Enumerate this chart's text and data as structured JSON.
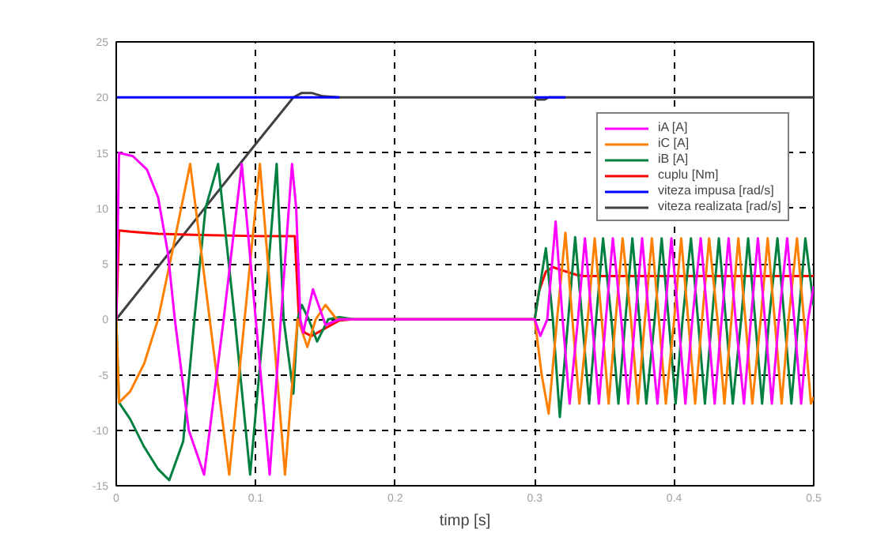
{
  "chart_data": {
    "type": "line",
    "xlabel": "timp [s]",
    "xlim": [
      0,
      0.5
    ],
    "xticks": [
      0,
      0.1,
      0.2,
      0.3,
      0.4,
      0.5
    ],
    "ylim": [
      -15,
      25
    ],
    "yticks": [
      -15,
      -10,
      -5,
      0,
      5,
      10,
      15,
      20,
      25
    ],
    "grid": true,
    "legend": "top right",
    "line_style": "solid",
    "series": [
      {
        "name": "iA [A]",
        "color": "#ff00ff",
        "x": [
          0,
          0.002,
          0.012,
          0.022,
          0.03,
          0.037,
          0.042,
          0.052,
          0.063,
          0.077,
          0.09,
          0.1,
          0.11,
          0.118,
          0.126,
          0.129,
          0.132,
          0.134,
          0.141,
          0.15,
          0.16,
          0.3,
          0.304,
          0.309,
          0.315,
          0.32,
          0.325,
          0.331,
          0.336,
          0.341,
          0.346,
          0.351,
          0.356,
          0.362,
          0.367,
          0.372,
          0.377,
          0.382,
          0.388,
          0.393,
          0.398,
          0.403,
          0.408,
          0.413,
          0.419,
          0.424,
          0.429,
          0.434,
          0.439,
          0.444,
          0.45,
          0.455,
          0.46,
          0.465,
          0.47,
          0.475,
          0.481,
          0.486,
          0.491,
          0.496,
          0.5
        ],
        "values": [
          0,
          15,
          14.7,
          13.5,
          11,
          6,
          0,
          -10,
          -14,
          0,
          14,
          0,
          -14,
          0,
          14,
          10,
          0,
          -1.2,
          2.7,
          -0.5,
          0,
          0,
          -1.5,
          0,
          8.8,
          0,
          -7.6,
          0,
          7.3,
          0,
          -7.6,
          0,
          7.3,
          0,
          -7.6,
          0,
          7.3,
          0,
          -7.6,
          0,
          7.3,
          0,
          -7.6,
          0,
          7.3,
          0,
          -7.6,
          0,
          7.3,
          0,
          -7.6,
          0,
          7.3,
          0,
          -7.6,
          0,
          7.3,
          0,
          -7.6,
          0,
          3
        ]
      },
      {
        "name": "iC [A]",
        "color": "#ff8000",
        "x": [
          0,
          0.002,
          0.01,
          0.02,
          0.03,
          0.04,
          0.053,
          0.067,
          0.081,
          0.092,
          0.103,
          0.112,
          0.121,
          0.126,
          0.13,
          0.133,
          0.137,
          0.143,
          0.15,
          0.158,
          0.3,
          0.305,
          0.31,
          0.316,
          0.322,
          0.327,
          0.332,
          0.338,
          0.343,
          0.348,
          0.353,
          0.358,
          0.363,
          0.369,
          0.374,
          0.379,
          0.384,
          0.389,
          0.394,
          0.4,
          0.405,
          0.41,
          0.415,
          0.42,
          0.425,
          0.431,
          0.436,
          0.441,
          0.446,
          0.451,
          0.456,
          0.462,
          0.467,
          0.472,
          0.477,
          0.482,
          0.488,
          0.493,
          0.498,
          0.5
        ],
        "values": [
          0,
          -7.5,
          -6.5,
          -4,
          0,
          6,
          14,
          0,
          -14,
          0,
          14,
          0,
          -14,
          -6,
          0,
          -1,
          -2.5,
          0,
          1.3,
          0,
          0,
          -5,
          -8.5,
          0,
          7.8,
          0,
          -7.6,
          0,
          7.3,
          0,
          -7.6,
          0,
          7.3,
          0,
          -7.6,
          0,
          7.3,
          0,
          -7.6,
          0,
          7.3,
          0,
          -7.6,
          0,
          7.3,
          0,
          -7.6,
          0,
          7.3,
          0,
          -7.6,
          0,
          7.3,
          0,
          -7.6,
          0,
          7.3,
          0,
          -7.6,
          -7
        ]
      },
      {
        "name": "iB [A]",
        "color": "#008040",
        "x": [
          0,
          0.002,
          0.01,
          0.02,
          0.03,
          0.038,
          0.048,
          0.056,
          0.064,
          0.073,
          0.085,
          0.096,
          0.106,
          0.115,
          0.12,
          0.127,
          0.13,
          0.133,
          0.138,
          0.144,
          0.152,
          0.16,
          0.17,
          0.3,
          0.308,
          0.313,
          0.318,
          0.324,
          0.329,
          0.334,
          0.339,
          0.344,
          0.349,
          0.355,
          0.36,
          0.365,
          0.37,
          0.375,
          0.38,
          0.386,
          0.391,
          0.396,
          0.401,
          0.406,
          0.412,
          0.417,
          0.422,
          0.427,
          0.432,
          0.437,
          0.442,
          0.448,
          0.453,
          0.458,
          0.463,
          0.468,
          0.474,
          0.479,
          0.484,
          0.489,
          0.494,
          0.5
        ],
        "values": [
          0,
          -7.5,
          -9,
          -11.5,
          -13.5,
          -14.5,
          -11,
          0,
          10,
          14,
          0,
          -14,
          0,
          14,
          0,
          -6.7,
          0,
          1.3,
          0,
          -2,
          0,
          0.2,
          0,
          0,
          6.4,
          0,
          -8.8,
          0,
          7.4,
          0,
          -7.6,
          0,
          7.3,
          0,
          -7.6,
          0,
          7.3,
          0,
          -7.6,
          0,
          7.3,
          0,
          -7.6,
          0,
          7.3,
          0,
          -7.6,
          0,
          7.3,
          0,
          -7.6,
          0,
          7.3,
          0,
          -7.6,
          0,
          7.3,
          0,
          -7.6,
          0,
          7.3,
          1.2
        ]
      },
      {
        "name": "cuplu [Nm]",
        "color": "#ff0000",
        "x": [
          0,
          0.002,
          0.01,
          0.03,
          0.06,
          0.1,
          0.128,
          0.131,
          0.135,
          0.14,
          0.15,
          0.16,
          0.17,
          0.3,
          0.303,
          0.308,
          0.313,
          0.32,
          0.33,
          0.335,
          0.5
        ],
        "values": [
          0,
          8,
          7.9,
          7.7,
          7.6,
          7.5,
          7.5,
          0,
          -1.2,
          -1.5,
          -0.8,
          -0.1,
          0,
          0,
          2.5,
          4.3,
          4.7,
          4.4,
          4,
          3.9,
          3.9
        ]
      },
      {
        "name": "viteza impusa [rad/s]",
        "color": "#0000ff",
        "x": [
          0,
          0.16,
          0.161,
          0.3,
          0.322
        ],
        "values": [
          20,
          20,
          null,
          20,
          20
        ]
      },
      {
        "name": "viteza realizata [rad/s]",
        "color": "#404040",
        "x": [
          0,
          0.1,
          0.127,
          0.133,
          0.14,
          0.148,
          0.16,
          0.3,
          0.302,
          0.307,
          0.31,
          0.5
        ],
        "values": [
          0,
          15.8,
          20,
          20.4,
          20.4,
          20.1,
          20,
          20,
          19.8,
          19.8,
          20,
          20
        ]
      }
    ]
  }
}
